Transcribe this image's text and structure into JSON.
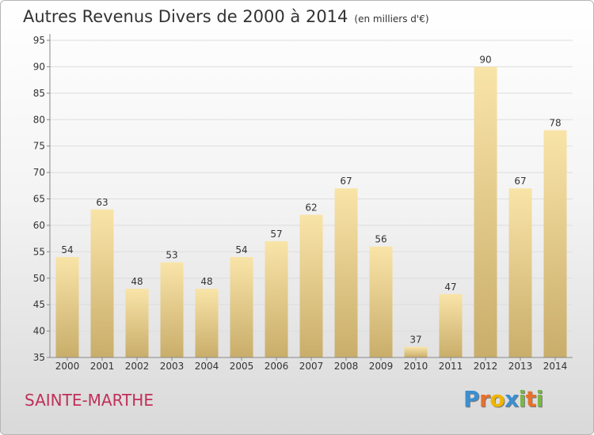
{
  "title": "Autres Revenus Divers de 2000 à 2014",
  "subtitle": "(en milliers d'€)",
  "place_name": "SAINTE-MARTHE",
  "logo": {
    "letters": [
      "P",
      "r",
      "o",
      "x",
      "i",
      "t",
      "i"
    ],
    "colors": [
      "#3b8fd0",
      "#e8702a",
      "#f0b500",
      "#3b8fd0",
      "#7ab648",
      "#e8702a",
      "#7ab648"
    ]
  },
  "colors": {
    "bar_light": "#f9e4a8",
    "bar_dark": "#c9ad6a",
    "grid": "#dddddd",
    "axis": "#888888",
    "text": "#333333",
    "place": "#c0305a"
  },
  "chart_data": {
    "type": "bar",
    "title": "Autres Revenus Divers de 2000 à 2014",
    "subtitle": "(en milliers d'€)",
    "categories": [
      "2000",
      "2001",
      "2002",
      "2003",
      "2004",
      "2005",
      "2006",
      "2007",
      "2008",
      "2009",
      "2010",
      "2011",
      "2012",
      "2013",
      "2014"
    ],
    "values": [
      54,
      63,
      48,
      53,
      48,
      54,
      57,
      62,
      67,
      56,
      37,
      47,
      90,
      67,
      78
    ],
    "ylim": [
      35,
      95
    ],
    "yticks": [
      35,
      40,
      45,
      50,
      55,
      60,
      65,
      70,
      75,
      80,
      85,
      90,
      95
    ],
    "grid": true,
    "data_labels": true
  }
}
